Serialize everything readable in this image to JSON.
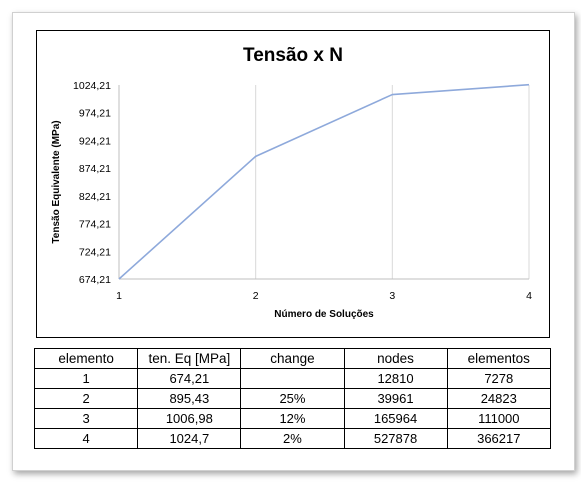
{
  "chart_data": {
    "type": "line",
    "title": "Tensão x N",
    "xlabel": "Número de Soluções",
    "ylabel": "Tensão Equivalente (MPa)",
    "x": [
      1,
      2,
      3,
      4
    ],
    "x_ticks": [
      "1",
      "2",
      "3",
      "4"
    ],
    "xlim": [
      1,
      4
    ],
    "y_ticks": [
      "674,21",
      "724,21",
      "774,21",
      "824,21",
      "874,21",
      "924,21",
      "974,21",
      "1024,21"
    ],
    "ylim": [
      674.21,
      1024.21
    ],
    "series": [
      {
        "values": [
          674.21,
          895.43,
          1006.98,
          1024.7
        ]
      }
    ],
    "grid": "vertical",
    "line_color": "#8ea9db"
  },
  "table": {
    "headers": [
      "elemento",
      "ten. Eq [MPa]",
      "change",
      "nodes",
      "elementos"
    ],
    "rows": [
      [
        "1",
        "674,21",
        "",
        "12810",
        "7278"
      ],
      [
        "2",
        "895,43",
        "25%",
        "39961",
        "24823"
      ],
      [
        "3",
        "1006,98",
        "12%",
        "165964",
        "111000"
      ],
      [
        "4",
        "1024,7",
        "2%",
        "527878",
        "366217"
      ]
    ]
  }
}
